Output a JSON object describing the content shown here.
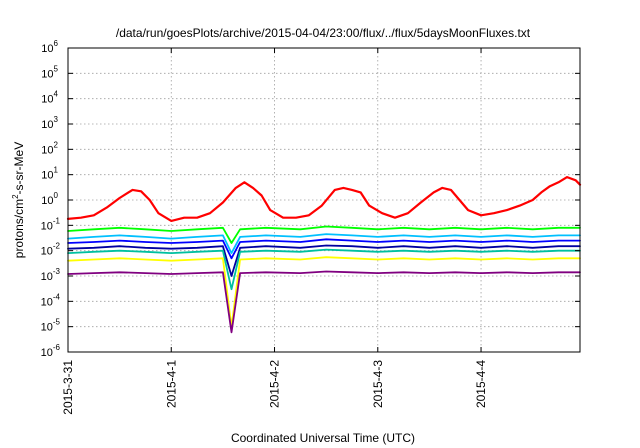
{
  "chart_data": {
    "type": "line",
    "title": "/data/run/goesPlots/archive/2015-04-04/23:00/flux/../flux/5daysMoonFluxes.txt",
    "xlabel": "Coordinated Universal Time (UTC)",
    "ylabel": {
      "base": "protons/cm",
      "sup": "2",
      "rest": "-s-sr-MeV"
    },
    "xlim": [
      "2015-03-31",
      "2015-04-04T23:00"
    ],
    "ylim": [
      1e-06,
      1000000.0
    ],
    "yscale": "log",
    "grid": true,
    "legend": "none",
    "x_ticks": [
      {
        "date": "2015-03-31",
        "label": "2015-3-31"
      },
      {
        "date": "2015-04-01",
        "label": "2015-4-1"
      },
      {
        "date": "2015-04-02",
        "label": "2015-4-2"
      },
      {
        "date": "2015-04-03",
        "label": "2015-4-3"
      },
      {
        "date": "2015-04-04",
        "label": "2015-4-4"
      }
    ],
    "y_ticks": [
      {
        "exp": -6,
        "label_base": "10",
        "label_exp": "-6"
      },
      {
        "exp": -5,
        "label_base": "10",
        "label_exp": "-5"
      },
      {
        "exp": -4,
        "label_base": "10",
        "label_exp": "-4"
      },
      {
        "exp": -3,
        "label_base": "10",
        "label_exp": "-3"
      },
      {
        "exp": -2,
        "label_base": "10",
        "label_exp": "-2"
      },
      {
        "exp": -1,
        "label_base": "10",
        "label_exp": "-1"
      },
      {
        "exp": 0,
        "label_base": "10",
        "label_exp": "0"
      },
      {
        "exp": 1,
        "label_base": "10",
        "label_exp": "1"
      },
      {
        "exp": 2,
        "label_base": "10",
        "label_exp": "2"
      },
      {
        "exp": 3,
        "label_base": "10",
        "label_exp": "3"
      },
      {
        "exp": 4,
        "label_base": "10",
        "label_exp": "4"
      },
      {
        "exp": 5,
        "label_base": "10",
        "label_exp": "5"
      },
      {
        "exp": 6,
        "label_base": "10",
        "label_exp": "6"
      }
    ],
    "series": [
      {
        "color": "#ff0000",
        "points": [
          [
            "2015-03-31T00:00",
            0.18
          ],
          [
            "2015-03-31T03:00",
            0.2
          ],
          [
            "2015-03-31T06:00",
            0.25
          ],
          [
            "2015-03-31T09:00",
            0.5
          ],
          [
            "2015-03-31T12:00",
            1.2
          ],
          [
            "2015-03-31T15:00",
            2.5
          ],
          [
            "2015-03-31T17:00",
            2.2
          ],
          [
            "2015-03-31T19:00",
            1.0
          ],
          [
            "2015-03-31T21:00",
            0.3
          ],
          [
            "2015-04-01T00:00",
            0.15
          ],
          [
            "2015-04-01T03:00",
            0.2
          ],
          [
            "2015-04-01T06:00",
            0.2
          ],
          [
            "2015-04-01T09:00",
            0.3
          ],
          [
            "2015-04-01T12:00",
            0.8
          ],
          [
            "2015-04-01T15:00",
            3.0
          ],
          [
            "2015-04-01T17:00",
            5.0
          ],
          [
            "2015-04-01T19:00",
            3.0
          ],
          [
            "2015-04-01T21:00",
            1.5
          ],
          [
            "2015-04-01T23:00",
            0.4
          ],
          [
            "2015-04-02T02:00",
            0.2
          ],
          [
            "2015-04-02T05:00",
            0.2
          ],
          [
            "2015-04-02T08:00",
            0.25
          ],
          [
            "2015-04-02T11:00",
            0.6
          ],
          [
            "2015-04-02T14:00",
            2.5
          ],
          [
            "2015-04-02T16:00",
            3.0
          ],
          [
            "2015-04-02T18:00",
            2.5
          ],
          [
            "2015-04-02T20:00",
            2.0
          ],
          [
            "2015-04-02T22:00",
            0.6
          ],
          [
            "2015-04-03T01:00",
            0.3
          ],
          [
            "2015-04-03T04:00",
            0.2
          ],
          [
            "2015-04-03T07:00",
            0.3
          ],
          [
            "2015-04-03T10:00",
            0.8
          ],
          [
            "2015-04-03T13:00",
            2.0
          ],
          [
            "2015-04-03T15:00",
            3.0
          ],
          [
            "2015-04-03T17:00",
            2.5
          ],
          [
            "2015-04-03T19:00",
            1.0
          ],
          [
            "2015-04-03T21:00",
            0.4
          ],
          [
            "2015-04-04T00:00",
            0.25
          ],
          [
            "2015-04-04T03:00",
            0.3
          ],
          [
            "2015-04-04T06:00",
            0.4
          ],
          [
            "2015-04-04T09:00",
            0.6
          ],
          [
            "2015-04-04T12:00",
            1.0
          ],
          [
            "2015-04-04T14:00",
            2.0
          ],
          [
            "2015-04-04T16:00",
            3.5
          ],
          [
            "2015-04-04T18:00",
            5.0
          ],
          [
            "2015-04-04T20:00",
            8.0
          ],
          [
            "2015-04-04T22:00",
            6.0
          ],
          [
            "2015-04-04T23:00",
            4.0
          ]
        ]
      },
      {
        "color": "#00ff00",
        "points": [
          [
            "2015-03-31T00:00",
            0.06
          ],
          [
            "2015-03-31T06:00",
            0.07
          ],
          [
            "2015-03-31T12:00",
            0.08
          ],
          [
            "2015-03-31T18:00",
            0.07
          ],
          [
            "2015-04-01T00:00",
            0.06
          ],
          [
            "2015-04-01T06:00",
            0.07
          ],
          [
            "2015-04-01T12:00",
            0.08
          ],
          [
            "2015-04-01T14:00",
            0.02
          ],
          [
            "2015-04-01T16:00",
            0.07
          ],
          [
            "2015-04-01T22:00",
            0.08
          ],
          [
            "2015-04-02T06:00",
            0.07
          ],
          [
            "2015-04-02T12:00",
            0.09
          ],
          [
            "2015-04-02T18:00",
            0.08
          ],
          [
            "2015-04-03T00:00",
            0.07
          ],
          [
            "2015-04-03T06:00",
            0.08
          ],
          [
            "2015-04-03T12:00",
            0.07
          ],
          [
            "2015-04-03T18:00",
            0.08
          ],
          [
            "2015-04-04T00:00",
            0.07
          ],
          [
            "2015-04-04T06:00",
            0.08
          ],
          [
            "2015-04-04T12:00",
            0.07
          ],
          [
            "2015-04-04T18:00",
            0.08
          ],
          [
            "2015-04-04T23:00",
            0.08
          ]
        ]
      },
      {
        "color": "#00c0ff",
        "points": [
          [
            "2015-03-31T00:00",
            0.03
          ],
          [
            "2015-03-31T06:00",
            0.035
          ],
          [
            "2015-03-31T12:00",
            0.04
          ],
          [
            "2015-03-31T18:00",
            0.035
          ],
          [
            "2015-04-01T00:00",
            0.03
          ],
          [
            "2015-04-01T06:00",
            0.035
          ],
          [
            "2015-04-01T12:00",
            0.04
          ],
          [
            "2015-04-01T14:00",
            0.008
          ],
          [
            "2015-04-01T16:00",
            0.035
          ],
          [
            "2015-04-01T22:00",
            0.04
          ],
          [
            "2015-04-02T06:00",
            0.035
          ],
          [
            "2015-04-02T12:00",
            0.045
          ],
          [
            "2015-04-02T18:00",
            0.04
          ],
          [
            "2015-04-03T00:00",
            0.035
          ],
          [
            "2015-04-03T06:00",
            0.04
          ],
          [
            "2015-04-03T12:00",
            0.035
          ],
          [
            "2015-04-03T18:00",
            0.04
          ],
          [
            "2015-04-04T00:00",
            0.035
          ],
          [
            "2015-04-04T06:00",
            0.04
          ],
          [
            "2015-04-04T12:00",
            0.035
          ],
          [
            "2015-04-04T18:00",
            0.04
          ],
          [
            "2015-04-04T23:00",
            0.04
          ]
        ]
      },
      {
        "color": "#0000ff",
        "points": [
          [
            "2015-03-31T00:00",
            0.02
          ],
          [
            "2015-03-31T06:00",
            0.022
          ],
          [
            "2015-03-31T12:00",
            0.025
          ],
          [
            "2015-03-31T18:00",
            0.022
          ],
          [
            "2015-04-01T00:00",
            0.02
          ],
          [
            "2015-04-01T06:00",
            0.022
          ],
          [
            "2015-04-01T12:00",
            0.025
          ],
          [
            "2015-04-01T14:00",
            0.005
          ],
          [
            "2015-04-01T16:00",
            0.022
          ],
          [
            "2015-04-01T22:00",
            0.025
          ],
          [
            "2015-04-02T06:00",
            0.022
          ],
          [
            "2015-04-02T12:00",
            0.028
          ],
          [
            "2015-04-02T18:00",
            0.025
          ],
          [
            "2015-04-03T00:00",
            0.022
          ],
          [
            "2015-04-03T06:00",
            0.025
          ],
          [
            "2015-04-03T12:00",
            0.022
          ],
          [
            "2015-04-03T18:00",
            0.025
          ],
          [
            "2015-04-04T00:00",
            0.022
          ],
          [
            "2015-04-04T06:00",
            0.025
          ],
          [
            "2015-04-04T12:00",
            0.022
          ],
          [
            "2015-04-04T18:00",
            0.025
          ],
          [
            "2015-04-04T23:00",
            0.025
          ]
        ]
      },
      {
        "color": "#0000a0",
        "points": [
          [
            "2015-03-31T00:00",
            0.012
          ],
          [
            "2015-03-31T06:00",
            0.013
          ],
          [
            "2015-03-31T12:00",
            0.015
          ],
          [
            "2015-03-31T18:00",
            0.013
          ],
          [
            "2015-04-01T00:00",
            0.012
          ],
          [
            "2015-04-01T06:00",
            0.013
          ],
          [
            "2015-04-01T12:00",
            0.015
          ],
          [
            "2015-04-01T14:00",
            0.001
          ],
          [
            "2015-04-01T16:00",
            0.013
          ],
          [
            "2015-04-01T22:00",
            0.015
          ],
          [
            "2015-04-02T06:00",
            0.013
          ],
          [
            "2015-04-02T12:00",
            0.016
          ],
          [
            "2015-04-02T18:00",
            0.015
          ],
          [
            "2015-04-03T00:00",
            0.013
          ],
          [
            "2015-04-03T06:00",
            0.015
          ],
          [
            "2015-04-03T12:00",
            0.013
          ],
          [
            "2015-04-03T18:00",
            0.015
          ],
          [
            "2015-04-04T00:00",
            0.013
          ],
          [
            "2015-04-04T06:00",
            0.015
          ],
          [
            "2015-04-04T12:00",
            0.013
          ],
          [
            "2015-04-04T18:00",
            0.015
          ],
          [
            "2015-04-04T23:00",
            0.015
          ]
        ]
      },
      {
        "color": "#00c0a0",
        "points": [
          [
            "2015-03-31T00:00",
            0.008
          ],
          [
            "2015-03-31T06:00",
            0.009
          ],
          [
            "2015-03-31T12:00",
            0.01
          ],
          [
            "2015-03-31T18:00",
            0.009
          ],
          [
            "2015-04-01T00:00",
            0.008
          ],
          [
            "2015-04-01T06:00",
            0.009
          ],
          [
            "2015-04-01T12:00",
            0.01
          ],
          [
            "2015-04-01T14:00",
            0.0003
          ],
          [
            "2015-04-01T16:00",
            0.009
          ],
          [
            "2015-04-01T22:00",
            0.01
          ],
          [
            "2015-04-02T06:00",
            0.009
          ],
          [
            "2015-04-02T12:00",
            0.011
          ],
          [
            "2015-04-02T18:00",
            0.01
          ],
          [
            "2015-04-03T00:00",
            0.009
          ],
          [
            "2015-04-03T06:00",
            0.01
          ],
          [
            "2015-04-03T12:00",
            0.009
          ],
          [
            "2015-04-03T18:00",
            0.01
          ],
          [
            "2015-04-04T00:00",
            0.009
          ],
          [
            "2015-04-04T06:00",
            0.01
          ],
          [
            "2015-04-04T12:00",
            0.009
          ],
          [
            "2015-04-04T18:00",
            0.01
          ],
          [
            "2015-04-04T23:00",
            0.01
          ]
        ]
      },
      {
        "color": "#ffff00",
        "points": [
          [
            "2015-03-31T00:00",
            0.004
          ],
          [
            "2015-03-31T06:00",
            0.0045
          ],
          [
            "2015-03-31T12:00",
            0.005
          ],
          [
            "2015-03-31T18:00",
            0.0045
          ],
          [
            "2015-04-01T00:00",
            0.004
          ],
          [
            "2015-04-01T06:00",
            0.0045
          ],
          [
            "2015-04-01T12:00",
            0.005
          ],
          [
            "2015-04-01T14:00",
            1e-05
          ],
          [
            "2015-04-01T16:00",
            0.0045
          ],
          [
            "2015-04-01T22:00",
            0.005
          ],
          [
            "2015-04-02T06:00",
            0.0045
          ],
          [
            "2015-04-02T12:00",
            0.0055
          ],
          [
            "2015-04-02T18:00",
            0.005
          ],
          [
            "2015-04-03T00:00",
            0.0045
          ],
          [
            "2015-04-03T06:00",
            0.005
          ],
          [
            "2015-04-03T12:00",
            0.0045
          ],
          [
            "2015-04-03T18:00",
            0.005
          ],
          [
            "2015-04-04T00:00",
            0.0045
          ],
          [
            "2015-04-04T06:00",
            0.005
          ],
          [
            "2015-04-04T12:00",
            0.0045
          ],
          [
            "2015-04-04T18:00",
            0.005
          ],
          [
            "2015-04-04T23:00",
            0.005
          ]
        ]
      },
      {
        "color": "#800080",
        "points": [
          [
            "2015-03-31T00:00",
            0.0012
          ],
          [
            "2015-03-31T06:00",
            0.0013
          ],
          [
            "2015-03-31T12:00",
            0.0014
          ],
          [
            "2015-03-31T18:00",
            0.0013
          ],
          [
            "2015-04-01T00:00",
            0.0012
          ],
          [
            "2015-04-01T06:00",
            0.0013
          ],
          [
            "2015-04-01T12:00",
            0.0014
          ],
          [
            "2015-04-01T14:00",
            6e-06
          ],
          [
            "2015-04-01T16:00",
            0.0013
          ],
          [
            "2015-04-01T22:00",
            0.0014
          ],
          [
            "2015-04-02T06:00",
            0.0013
          ],
          [
            "2015-04-02T12:00",
            0.0015
          ],
          [
            "2015-04-02T18:00",
            0.0014
          ],
          [
            "2015-04-03T00:00",
            0.0013
          ],
          [
            "2015-04-03T06:00",
            0.0014
          ],
          [
            "2015-04-03T12:00",
            0.0013
          ],
          [
            "2015-04-03T18:00",
            0.0014
          ],
          [
            "2015-04-04T00:00",
            0.0013
          ],
          [
            "2015-04-04T06:00",
            0.0014
          ],
          [
            "2015-04-04T12:00",
            0.0013
          ],
          [
            "2015-04-04T18:00",
            0.0014
          ],
          [
            "2015-04-04T23:00",
            0.0014
          ]
        ]
      }
    ]
  }
}
